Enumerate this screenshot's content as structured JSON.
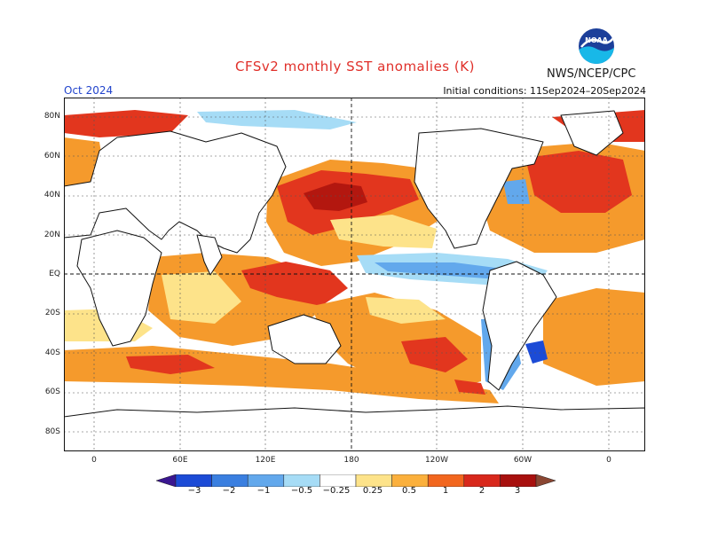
{
  "title": "CFSv2 monthly SST anomalies (K)",
  "org": "NWS/NCEP/CPC",
  "logo_text": "NOAA",
  "month": "Oct 2024",
  "initial_conditions": "Initial conditions: 11Sep2024–20Sep2024",
  "lat_labels": [
    "80N",
    "60N",
    "40N",
    "20N",
    "EQ",
    "20S",
    "40S",
    "60S",
    "80S"
  ],
  "lon_labels": [
    "0",
    "60E",
    "120E",
    "180",
    "120W",
    "60W",
    "0"
  ],
  "colorbar": {
    "labels": [
      "−3",
      "−2",
      "−1",
      "−0.5",
      "−0.25",
      "0.25",
      "0.5",
      "1",
      "2",
      "3"
    ],
    "colors": [
      "#3a1690",
      "#1c4bd6",
      "#3a7fe0",
      "#62a8ec",
      "#a6dcf6",
      "#ffffff",
      "#fde38a",
      "#fbb03c",
      "#f2661e",
      "#d8281c",
      "#a8100e",
      "#8a4632"
    ]
  },
  "colors": {
    "land": "#ffffff",
    "coast": "#111111",
    "ocean_neutral": "#ffffff",
    "warm_light": "#fde38a",
    "warm_orange": "#f59a2c",
    "warm_red": "#e2361e",
    "warm_dark": "#b3170f",
    "cool_light": "#a6dcf6",
    "cool_mid": "#62a8ec",
    "cool_dark": "#1c4bd6"
  }
}
